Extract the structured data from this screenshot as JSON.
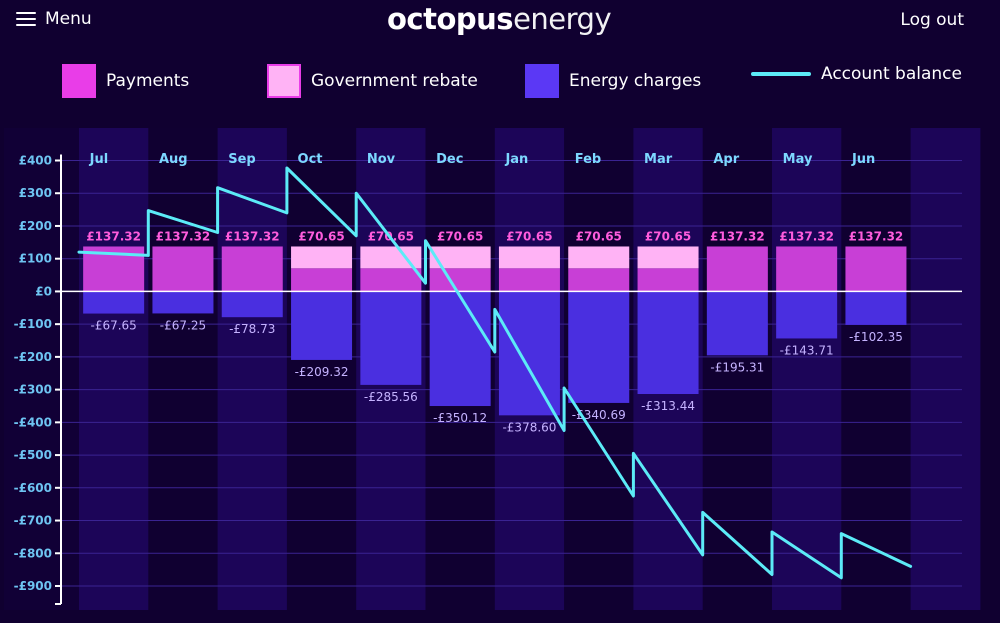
{
  "header": {
    "menu_label": "Menu",
    "logo_word1": "octopus",
    "logo_word2": "energy",
    "logout_label": "Log out"
  },
  "legend": [
    {
      "label": "Payments",
      "color": "#e93de8",
      "kind": "swatch"
    },
    {
      "label": "Government rebate",
      "color": "#ffb3f5",
      "kind": "swatch"
    },
    {
      "label": "Energy charges",
      "color": "#5b38f5",
      "kind": "swatch"
    },
    {
      "label": "Account balance",
      "color": "#5cebf7",
      "kind": "line"
    }
  ],
  "chart_data": {
    "type": "bar",
    "categories": [
      "Jul",
      "Aug",
      "Sep",
      "Oct",
      "Nov",
      "Dec",
      "Jan",
      "Feb",
      "Mar",
      "Apr",
      "May",
      "Jun"
    ],
    "ylim": [
      -900,
      400
    ],
    "yticks": [
      400,
      300,
      200,
      100,
      0,
      -100,
      -200,
      -300,
      -400,
      -500,
      -600,
      -700,
      -800,
      -900
    ],
    "ytick_labels": [
      "£400",
      "£300",
      "£200",
      "£100",
      "£0",
      "-£100",
      "-£200",
      "-£300",
      "-£400",
      "-£500",
      "-£600",
      "-£700",
      "-£800",
      "-£900"
    ],
    "grid": true,
    "series": [
      {
        "name": "Payments",
        "color": "#c83fd6",
        "values": [
          137.32,
          137.32,
          137.32,
          70.65,
          70.65,
          70.65,
          70.65,
          70.65,
          70.65,
          137.32,
          137.32,
          137.32
        ],
        "labels": [
          "£137.32",
          "£137.32",
          "£137.32",
          "£70.65",
          "£70.65",
          "£70.65",
          "£70.65",
          "£70.65",
          "£70.65",
          "£137.32",
          "£137.32",
          "£137.32"
        ]
      },
      {
        "name": "Government rebate",
        "color": "#ffb3f5",
        "values": [
          0,
          0,
          0,
          66.67,
          66.67,
          66.67,
          66.67,
          66.67,
          66.67,
          0,
          0,
          0
        ]
      },
      {
        "name": "Energy charges",
        "color": "#4a2fe0",
        "values": [
          -67.65,
          -67.25,
          -78.73,
          -209.32,
          -285.56,
          -350.12,
          -378.6,
          -340.69,
          -313.44,
          -195.31,
          -143.71,
          -102.35
        ],
        "labels": [
          "-£67.65",
          "-£67.25",
          "-£78.73",
          "-£209.32",
          "-£285.56",
          "-£350.12",
          "-£378.60",
          "-£340.69",
          "-£313.44",
          "-£195.31",
          "-£143.71",
          "-£102.35"
        ]
      },
      {
        "name": "Account balance",
        "type": "line",
        "color": "#5cebf7",
        "points": [
          [
            -0.5,
            120
          ],
          [
            0.5,
            110
          ],
          [
            0.5,
            247
          ],
          [
            1.5,
            180
          ],
          [
            1.5,
            317
          ],
          [
            2.5,
            240
          ],
          [
            2.5,
            377
          ],
          [
            3.5,
            170
          ],
          [
            3.5,
            300
          ],
          [
            4.5,
            25
          ],
          [
            4.5,
            155
          ],
          [
            5.5,
            -185
          ],
          [
            5.5,
            -55
          ],
          [
            6.5,
            -425
          ],
          [
            6.5,
            -295
          ],
          [
            7.5,
            -625
          ],
          [
            7.5,
            -495
          ],
          [
            8.5,
            -805
          ],
          [
            8.5,
            -675
          ],
          [
            9.5,
            -865
          ],
          [
            9.5,
            -735
          ],
          [
            10.5,
            -875
          ],
          [
            10.5,
            -740
          ],
          [
            11.5,
            -840
          ]
        ]
      }
    ]
  }
}
